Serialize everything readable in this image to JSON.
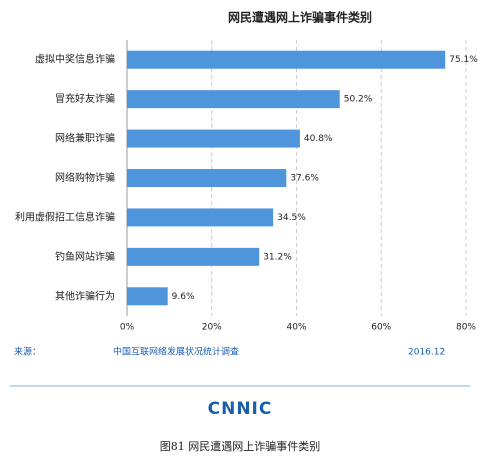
{
  "chart_data": {
    "type": "bar",
    "orientation": "horizontal",
    "title": "网民遭遇网上诈骗事件类别",
    "categories": [
      "虚拟中奖信息诈骗",
      "冒充好友诈骗",
      "网络兼职诈骗",
      "网络购物诈骗",
      "利用虚假招工信息诈骗",
      "钓鱼网站诈骗",
      "其他诈骗行为"
    ],
    "values": [
      75.1,
      50.2,
      40.8,
      37.6,
      34.5,
      31.2,
      9.6
    ],
    "value_labels": [
      "75.1%",
      "50.2%",
      "40.8%",
      "37.6%",
      "34.5%",
      "31.2%",
      "9.6%"
    ],
    "color": "#4f95dc",
    "xlim": [
      0,
      80
    ],
    "xticks": [
      {
        "value": 0,
        "label": "0%"
      },
      {
        "value": 20,
        "label": "20%"
      },
      {
        "value": 40,
        "label": "40%"
      },
      {
        "value": 60,
        "label": "60%"
      },
      {
        "value": 80,
        "label": "80%"
      }
    ],
    "grid": true
  },
  "source": {
    "label": "来源：",
    "name": "中国互联网络发展状况统计调查",
    "date": "2016.12"
  },
  "logo": "CNNIC",
  "caption": "图81  网民遭遇网上诈骗事件类别"
}
